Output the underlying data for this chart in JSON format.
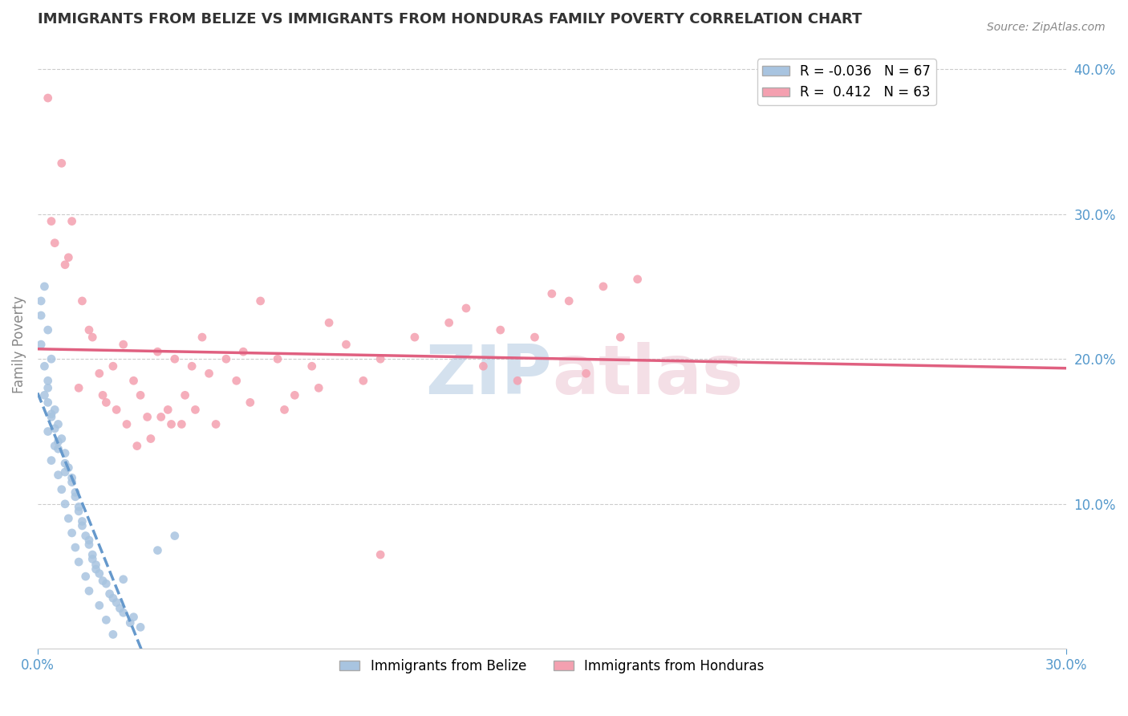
{
  "title": "IMMIGRANTS FROM BELIZE VS IMMIGRANTS FROM HONDURAS FAMILY POVERTY CORRELATION CHART",
  "source": "Source: ZipAtlas.com",
  "xlabel": "",
  "ylabel": "Family Poverty",
  "xlim": [
    0.0,
    0.3
  ],
  "ylim": [
    0.0,
    0.42
  ],
  "ytick_labels_right": [
    "10.0%",
    "20.0%",
    "30.0%",
    "40.0%"
  ],
  "yticks_right": [
    0.1,
    0.2,
    0.3,
    0.4
  ],
  "belize_color": "#a8c4e0",
  "honduras_color": "#f4a0b0",
  "belize_line_color": "#6699cc",
  "honduras_line_color": "#e06080",
  "belize_R": -0.036,
  "belize_N": 67,
  "honduras_R": 0.412,
  "honduras_N": 63,
  "title_fontsize": 13,
  "background_color": "#ffffff",
  "grid_color": "#cccccc",
  "axis_label_color": "#5599cc",
  "belize_scatter": [
    [
      0.002,
      0.25
    ],
    [
      0.003,
      0.22
    ],
    [
      0.004,
      0.2
    ],
    [
      0.003,
      0.18
    ],
    [
      0.005,
      0.165
    ],
    [
      0.004,
      0.16
    ],
    [
      0.006,
      0.155
    ],
    [
      0.003,
      0.15
    ],
    [
      0.007,
      0.145
    ],
    [
      0.005,
      0.14
    ],
    [
      0.008,
      0.135
    ],
    [
      0.004,
      0.13
    ],
    [
      0.009,
      0.125
    ],
    [
      0.006,
      0.12
    ],
    [
      0.01,
      0.115
    ],
    [
      0.007,
      0.11
    ],
    [
      0.011,
      0.105
    ],
    [
      0.008,
      0.1
    ],
    [
      0.012,
      0.095
    ],
    [
      0.009,
      0.09
    ],
    [
      0.013,
      0.085
    ],
    [
      0.01,
      0.08
    ],
    [
      0.015,
      0.075
    ],
    [
      0.011,
      0.07
    ],
    [
      0.016,
      0.065
    ],
    [
      0.012,
      0.06
    ],
    [
      0.017,
      0.055
    ],
    [
      0.014,
      0.05
    ],
    [
      0.02,
      0.045
    ],
    [
      0.015,
      0.04
    ],
    [
      0.022,
      0.035
    ],
    [
      0.018,
      0.03
    ],
    [
      0.025,
      0.025
    ],
    [
      0.02,
      0.02
    ],
    [
      0.03,
      0.015
    ],
    [
      0.022,
      0.01
    ],
    [
      0.001,
      0.23
    ],
    [
      0.002,
      0.195
    ],
    [
      0.003,
      0.17
    ],
    [
      0.005,
      0.152
    ],
    [
      0.006,
      0.143
    ],
    [
      0.008,
      0.128
    ],
    [
      0.01,
      0.118
    ],
    [
      0.012,
      0.098
    ],
    [
      0.013,
      0.088
    ],
    [
      0.015,
      0.072
    ],
    [
      0.017,
      0.058
    ],
    [
      0.019,
      0.047
    ],
    [
      0.021,
      0.038
    ],
    [
      0.024,
      0.028
    ],
    [
      0.027,
      0.018
    ],
    [
      0.001,
      0.21
    ],
    [
      0.002,
      0.175
    ],
    [
      0.004,
      0.162
    ],
    [
      0.006,
      0.138
    ],
    [
      0.008,
      0.122
    ],
    [
      0.011,
      0.108
    ],
    [
      0.014,
      0.078
    ],
    [
      0.016,
      0.062
    ],
    [
      0.018,
      0.052
    ],
    [
      0.023,
      0.032
    ],
    [
      0.028,
      0.022
    ],
    [
      0.001,
      0.24
    ],
    [
      0.003,
      0.185
    ],
    [
      0.025,
      0.048
    ],
    [
      0.035,
      0.068
    ],
    [
      0.04,
      0.078
    ]
  ],
  "honduras_scatter": [
    [
      0.005,
      0.28
    ],
    [
      0.008,
      0.265
    ],
    [
      0.01,
      0.295
    ],
    [
      0.012,
      0.18
    ],
    [
      0.015,
      0.22
    ],
    [
      0.018,
      0.19
    ],
    [
      0.02,
      0.17
    ],
    [
      0.022,
      0.195
    ],
    [
      0.025,
      0.21
    ],
    [
      0.028,
      0.185
    ],
    [
      0.03,
      0.175
    ],
    [
      0.032,
      0.16
    ],
    [
      0.035,
      0.205
    ],
    [
      0.038,
      0.165
    ],
    [
      0.04,
      0.2
    ],
    [
      0.042,
      0.155
    ],
    [
      0.045,
      0.195
    ],
    [
      0.048,
      0.215
    ],
    [
      0.05,
      0.19
    ],
    [
      0.055,
      0.2
    ],
    [
      0.058,
      0.185
    ],
    [
      0.06,
      0.205
    ],
    [
      0.065,
      0.24
    ],
    [
      0.07,
      0.2
    ],
    [
      0.075,
      0.175
    ],
    [
      0.08,
      0.195
    ],
    [
      0.085,
      0.225
    ],
    [
      0.09,
      0.21
    ],
    [
      0.095,
      0.185
    ],
    [
      0.1,
      0.2
    ],
    [
      0.11,
      0.215
    ],
    [
      0.12,
      0.225
    ],
    [
      0.13,
      0.195
    ],
    [
      0.14,
      0.185
    ],
    [
      0.15,
      0.245
    ],
    [
      0.16,
      0.19
    ],
    [
      0.17,
      0.215
    ],
    [
      0.003,
      0.38
    ],
    [
      0.007,
      0.335
    ],
    [
      0.004,
      0.295
    ],
    [
      0.009,
      0.27
    ],
    [
      0.013,
      0.24
    ],
    [
      0.016,
      0.215
    ],
    [
      0.019,
      0.175
    ],
    [
      0.023,
      0.165
    ],
    [
      0.026,
      0.155
    ],
    [
      0.029,
      0.14
    ],
    [
      0.033,
      0.145
    ],
    [
      0.036,
      0.16
    ],
    [
      0.039,
      0.155
    ],
    [
      0.043,
      0.175
    ],
    [
      0.046,
      0.165
    ],
    [
      0.052,
      0.155
    ],
    [
      0.062,
      0.17
    ],
    [
      0.072,
      0.165
    ],
    [
      0.082,
      0.18
    ],
    [
      0.125,
      0.235
    ],
    [
      0.135,
      0.22
    ],
    [
      0.145,
      0.215
    ],
    [
      0.155,
      0.24
    ],
    [
      0.165,
      0.25
    ],
    [
      0.175,
      0.255
    ],
    [
      0.1,
      0.065
    ]
  ]
}
